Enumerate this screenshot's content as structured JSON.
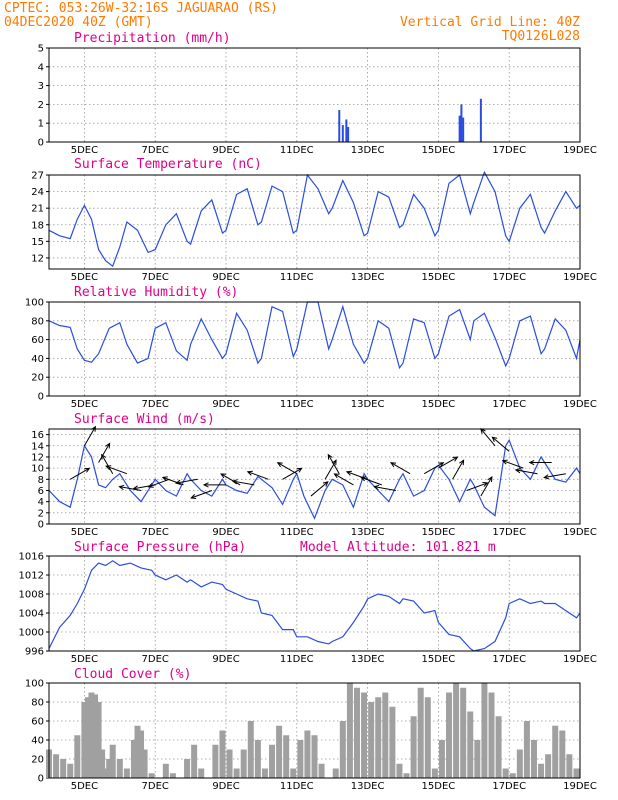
{
  "header": {
    "line1": "CPTEC:   053:26W-32:16S   JAGUARAO (RS)",
    "line2_left": "04DEC2020 40Z (GMT)",
    "line2_right": "Vertical Grid Line: 40Z",
    "line3_right": "TQ0126L028"
  },
  "x_labels": [
    "5DEC",
    "7DEC",
    "9DEC",
    "11DEC",
    "13DEC",
    "15DEC",
    "17DEC",
    "19DEC"
  ],
  "colors": {
    "line": "#2a4de0",
    "cloud": "#a0a0a0",
    "header": "#ff7a00",
    "title": "#e0008a",
    "arrow": "#000000"
  },
  "chart_data": [
    {
      "type": "bar",
      "title": "Precipitation (mm/h)",
      "xlim": [
        4,
        19
      ],
      "ylim": [
        0,
        5
      ],
      "yticks": [
        0,
        1,
        2,
        3,
        4,
        5
      ],
      "x": [
        5.1,
        6.4,
        8.7,
        9.4,
        12.2,
        12.3,
        12.4,
        12.45,
        15.6,
        15.65,
        15.7,
        16.2
      ],
      "values": [
        0.02,
        0.02,
        0.02,
        0.03,
        1.7,
        0.9,
        1.2,
        0.8,
        1.4,
        2.0,
        1.3,
        2.3
      ]
    },
    {
      "type": "line",
      "title": "Surface Temperature (nC)",
      "xlim": [
        4,
        19
      ],
      "ylim": [
        10,
        27
      ],
      "yticks": [
        12,
        15,
        18,
        21,
        24,
        27
      ],
      "x": [
        4.0,
        4.3,
        4.6,
        4.8,
        5.0,
        5.2,
        5.4,
        5.6,
        5.8,
        6.0,
        6.2,
        6.5,
        6.8,
        7.0,
        7.3,
        7.6,
        7.9,
        8.0,
        8.3,
        8.6,
        8.9,
        9.0,
        9.3,
        9.6,
        9.9,
        10.0,
        10.3,
        10.6,
        10.9,
        11.0,
        11.3,
        11.6,
        11.9,
        12.0,
        12.3,
        12.6,
        12.9,
        13.0,
        13.3,
        13.6,
        13.9,
        14.0,
        14.3,
        14.6,
        14.9,
        15.0,
        15.3,
        15.6,
        15.9,
        16.0,
        16.3,
        16.6,
        16.9,
        17.0,
        17.3,
        17.6,
        17.9,
        18.0,
        18.3,
        18.6,
        18.9,
        19.0
      ],
      "values": [
        17.0,
        16.0,
        15.5,
        19.0,
        21.5,
        19.0,
        13.5,
        11.5,
        10.5,
        14.0,
        18.5,
        17.0,
        13.0,
        13.5,
        18.0,
        20.0,
        15.0,
        14.5,
        20.5,
        22.5,
        16.5,
        17.0,
        23.5,
        24.5,
        18.0,
        18.5,
        25.0,
        24.0,
        16.5,
        17.0,
        27.0,
        24.5,
        20.0,
        21.0,
        26.0,
        22.0,
        16.0,
        16.5,
        24.0,
        23.0,
        17.5,
        18.0,
        23.5,
        21.0,
        16.0,
        17.0,
        25.5,
        27.0,
        20.0,
        22.0,
        27.5,
        24.0,
        16.0,
        15.0,
        21.0,
        23.5,
        17.5,
        16.5,
        20.5,
        24.0,
        21.0,
        21.5
      ]
    },
    {
      "type": "line",
      "title": "Relative Humidity (%)",
      "xlim": [
        4,
        19
      ],
      "ylim": [
        0,
        100
      ],
      "yticks": [
        0,
        20,
        40,
        60,
        80,
        100
      ],
      "x": [
        4.0,
        4.3,
        4.6,
        4.8,
        5.0,
        5.2,
        5.4,
        5.7,
        6.0,
        6.2,
        6.5,
        6.8,
        7.0,
        7.3,
        7.6,
        7.9,
        8.0,
        8.3,
        8.6,
        8.9,
        9.0,
        9.3,
        9.6,
        9.9,
        10.0,
        10.3,
        10.6,
        10.9,
        11.0,
        11.3,
        11.6,
        11.9,
        12.0,
        12.3,
        12.6,
        12.9,
        13.0,
        13.3,
        13.6,
        13.9,
        14.0,
        14.3,
        14.6,
        14.9,
        15.0,
        15.3,
        15.6,
        15.9,
        16.0,
        16.3,
        16.6,
        16.9,
        17.0,
        17.3,
        17.6,
        17.9,
        18.0,
        18.3,
        18.6,
        18.9,
        19.0
      ],
      "values": [
        80,
        75,
        73,
        50,
        38,
        36,
        45,
        72,
        78,
        55,
        35,
        40,
        72,
        78,
        48,
        38,
        55,
        82,
        60,
        40,
        45,
        88,
        70,
        35,
        40,
        95,
        90,
        42,
        50,
        100,
        100,
        50,
        60,
        95,
        55,
        35,
        40,
        80,
        72,
        30,
        35,
        82,
        78,
        40,
        45,
        85,
        92,
        60,
        80,
        88,
        62,
        32,
        40,
        80,
        85,
        45,
        50,
        82,
        70,
        40,
        60
      ]
    },
    {
      "type": "line",
      "title": "Surface Wind (m/s)",
      "xlim": [
        4,
        19
      ],
      "ylim": [
        0,
        17
      ],
      "yticks": [
        0,
        2,
        4,
        6,
        8,
        10,
        12,
        14,
        16
      ],
      "x": [
        4.0,
        4.3,
        4.6,
        4.8,
        5.0,
        5.2,
        5.4,
        5.6,
        5.8,
        6.0,
        6.3,
        6.6,
        6.9,
        7.0,
        7.3,
        7.6,
        7.9,
        8.0,
        8.3,
        8.6,
        8.9,
        9.0,
        9.3,
        9.6,
        9.9,
        10.0,
        10.3,
        10.6,
        10.9,
        11.0,
        11.2,
        11.5,
        11.8,
        12.0,
        12.3,
        12.6,
        12.9,
        13.0,
        13.3,
        13.6,
        13.9,
        14.0,
        14.3,
        14.6,
        14.9,
        15.0,
        15.3,
        15.6,
        15.9,
        16.0,
        16.3,
        16.6,
        16.9,
        17.0,
        17.3,
        17.6,
        17.9,
        18.0,
        18.3,
        18.6,
        18.9,
        19.0
      ],
      "values": [
        6.0,
        4.0,
        3.0,
        8.0,
        14.0,
        12.0,
        7.0,
        6.5,
        8.0,
        9.0,
        6.0,
        4.0,
        7.0,
        8.0,
        6.0,
        5.0,
        9.0,
        8.0,
        6.0,
        5.0,
        8.0,
        7.0,
        6.0,
        5.5,
        8.5,
        8.0,
        6.5,
        3.5,
        8.0,
        9.0,
        5.0,
        1.0,
        6.0,
        8.0,
        7.0,
        3.0,
        9.0,
        8.0,
        6.0,
        4.0,
        8.0,
        9.0,
        5.0,
        6.0,
        10.0,
        10.5,
        8.0,
        4.0,
        8.0,
        7.0,
        3.0,
        1.5,
        14.0,
        15.0,
        10.0,
        8.0,
        12.0,
        11.0,
        8.0,
        7.5,
        10.0,
        9.0
      ]
    },
    {
      "type": "line",
      "title": "Surface Pressure (hPa)",
      "subtitle": "Model Altitude: 101.821 m",
      "xlim": [
        4,
        19
      ],
      "ylim": [
        996,
        1016
      ],
      "yticks": [
        996,
        1000,
        1004,
        1008,
        1012,
        1016
      ],
      "x": [
        4.0,
        4.3,
        4.6,
        4.8,
        5.0,
        5.2,
        5.4,
        5.6,
        5.8,
        6.0,
        6.3,
        6.6,
        6.9,
        7.0,
        7.3,
        7.6,
        7.9,
        8.0,
        8.3,
        8.6,
        8.9,
        9.0,
        9.3,
        9.6,
        9.9,
        10.0,
        10.3,
        10.6,
        10.9,
        11.0,
        11.3,
        11.6,
        11.9,
        12.0,
        12.3,
        12.6,
        12.9,
        13.0,
        13.3,
        13.6,
        13.9,
        14.0,
        14.3,
        14.6,
        14.9,
        15.0,
        15.3,
        15.6,
        15.9,
        16.0,
        16.3,
        16.6,
        16.9,
        17.0,
        17.3,
        17.6,
        17.9,
        18.0,
        18.3,
        18.6,
        18.9,
        19.0
      ],
      "values": [
        996.5,
        1001.0,
        1003.5,
        1006.0,
        1009.0,
        1013.0,
        1014.5,
        1014.0,
        1015.0,
        1014.0,
        1014.5,
        1013.5,
        1013.0,
        1012.0,
        1011.0,
        1012.0,
        1010.5,
        1011.0,
        1009.5,
        1010.5,
        1010.0,
        1009.0,
        1008.0,
        1007.0,
        1006.5,
        1004.0,
        1003.5,
        1000.5,
        1000.5,
        999.0,
        999.0,
        998.0,
        997.5,
        998.0,
        999.0,
        1002.0,
        1005.5,
        1007.0,
        1008.0,
        1007.5,
        1006.0,
        1007.0,
        1006.5,
        1004.0,
        1004.5,
        1002.0,
        999.5,
        999.0,
        996.5,
        996.0,
        996.5,
        998.0,
        1003.0,
        1006.0,
        1007.0,
        1006.0,
        1006.5,
        1006.0,
        1006.0,
        1004.5,
        1003.0,
        1004.0
      ]
    },
    {
      "type": "area",
      "title": "Cloud Cover (%)",
      "xlim": [
        4,
        19
      ],
      "ylim": [
        0,
        100
      ],
      "yticks": [
        0,
        20,
        40,
        60,
        80,
        100
      ],
      "x": [
        4.0,
        4.2,
        4.4,
        4.6,
        4.8,
        5.0,
        5.1,
        5.2,
        5.3,
        5.4,
        5.5,
        5.6,
        5.7,
        5.8,
        6.0,
        6.2,
        6.4,
        6.5,
        6.6,
        6.7,
        6.9,
        7.1,
        7.3,
        7.5,
        7.7,
        7.9,
        8.1,
        8.3,
        8.5,
        8.7,
        8.9,
        9.1,
        9.3,
        9.5,
        9.7,
        9.9,
        10.1,
        10.3,
        10.5,
        10.7,
        10.9,
        11.1,
        11.3,
        11.5,
        11.7,
        11.9,
        12.1,
        12.3,
        12.5,
        12.7,
        12.9,
        13.1,
        13.3,
        13.5,
        13.7,
        13.9,
        14.1,
        14.3,
        14.5,
        14.7,
        14.9,
        15.1,
        15.3,
        15.5,
        15.7,
        15.9,
        16.1,
        16.3,
        16.5,
        16.7,
        16.9,
        17.1,
        17.3,
        17.5,
        17.7,
        17.9,
        18.1,
        18.3,
        18.5,
        18.7,
        18.9,
        19.0
      ],
      "values": [
        30,
        25,
        20,
        15,
        45,
        80,
        85,
        90,
        88,
        80,
        30,
        10,
        20,
        35,
        20,
        10,
        40,
        55,
        50,
        30,
        5,
        0,
        15,
        5,
        0,
        20,
        35,
        10,
        0,
        35,
        50,
        30,
        10,
        30,
        60,
        40,
        10,
        35,
        55,
        45,
        10,
        40,
        50,
        45,
        15,
        0,
        10,
        60,
        100,
        95,
        90,
        80,
        85,
        90,
        75,
        15,
        5,
        65,
        95,
        85,
        10,
        40,
        90,
        100,
        95,
        70,
        40,
        100,
        90,
        65,
        10,
        5,
        30,
        60,
        40,
        15,
        25,
        55,
        50,
        25,
        10,
        0
      ]
    }
  ],
  "wind_arrows": {
    "note_free": true,
    "x": [
      4.6,
      5.0,
      5.4,
      5.8,
      6.2,
      6.6,
      7.0,
      7.4,
      7.8,
      8.2,
      8.6,
      9.0,
      9.4,
      9.8,
      10.2,
      10.6,
      11.0,
      11.4,
      11.8,
      12.2,
      12.6,
      13.0,
      13.4,
      13.8,
      14.2,
      14.6,
      15.0,
      15.4,
      15.8,
      16.2,
      16.6,
      17.0,
      17.4,
      17.8,
      18.2,
      18.6
    ],
    "speed": [
      8,
      14,
      11,
      9,
      9,
      6,
      7,
      8,
      7,
      8,
      6,
      7,
      7,
      7,
      8,
      8,
      9,
      5,
      8,
      9,
      7,
      8,
      7,
      6,
      9,
      9,
      10,
      8,
      6,
      5,
      14,
      13,
      10,
      9,
      11,
      9
    ],
    "dir_deg": [
      30,
      60,
      60,
      120,
      160,
      170,
      190,
      200,
      160,
      190,
      200,
      180,
      150,
      170,
      160,
      30,
      150,
      40,
      60,
      120,
      150,
      160,
      160,
      170,
      150,
      30,
      30,
      60,
      20,
      60,
      130,
      140,
      160,
      170,
      180,
      190
    ]
  }
}
